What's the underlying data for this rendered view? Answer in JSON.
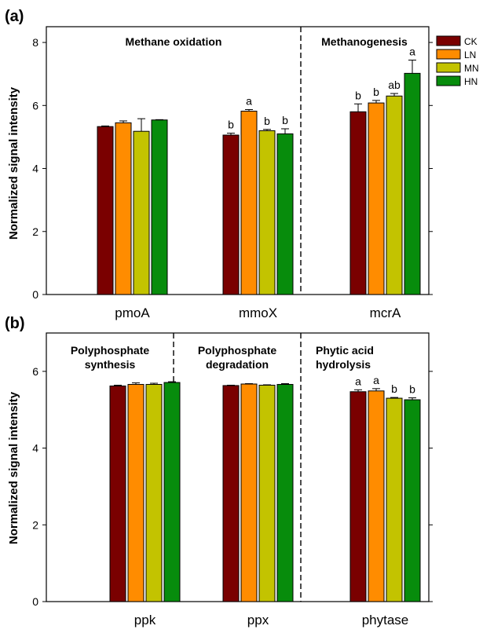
{
  "legend": [
    {
      "name": "CK",
      "color": "#7a0000"
    },
    {
      "name": "LN",
      "color": "#ff8c00"
    },
    {
      "name": "MN",
      "color": "#c3c300"
    },
    {
      "name": "HN",
      "color": "#078c0c"
    }
  ],
  "chart_data": [
    {
      "type": "bar",
      "panel_label": "(a)",
      "ylabel": "Normalized signal intensity",
      "ylim": [
        0,
        8.5
      ],
      "yticks": [
        0,
        2,
        4,
        6,
        8
      ],
      "categories": [
        "pmoA",
        "mmoX",
        "mcrA"
      ],
      "group_titles": [
        {
          "text": "Methane oxidation",
          "lines": [
            "Methane oxidation"
          ],
          "align": "center",
          "span": [
            0,
            1
          ]
        },
        {
          "text": "Methanogenesis",
          "lines": [
            "Methanogenesis"
          ],
          "align": "center",
          "span": [
            2,
            2
          ]
        }
      ],
      "dividers_after": [
        1
      ],
      "series": [
        {
          "name": "CK",
          "color": "#7a0000",
          "values": [
            5.33,
            5.06,
            5.8
          ],
          "errors": [
            0.02,
            0.06,
            0.25
          ],
          "labels": [
            "",
            "b",
            "b"
          ]
        },
        {
          "name": "LN",
          "color": "#ff8c00",
          "values": [
            5.45,
            5.82,
            6.08
          ],
          "errors": [
            0.06,
            0.05,
            0.08
          ],
          "labels": [
            "",
            "a",
            "b"
          ]
        },
        {
          "name": "MN",
          "color": "#c3c300",
          "values": [
            5.18,
            5.2,
            6.3
          ],
          "errors": [
            0.4,
            0.04,
            0.08
          ],
          "labels": [
            "",
            "b",
            "ab"
          ]
        },
        {
          "name": "HN",
          "color": "#078c0c",
          "values": [
            5.54,
            5.1,
            7.02
          ],
          "errors": [
            0.01,
            0.16,
            0.42
          ],
          "labels": [
            "",
            "b",
            "a"
          ]
        }
      ]
    },
    {
      "type": "bar",
      "panel_label": "(b)",
      "ylabel": "Normalized signal intensity",
      "ylim": [
        0,
        7
      ],
      "yticks": [
        0,
        2,
        4,
        6
      ],
      "categories": [
        "ppk",
        "ppx",
        "phytase"
      ],
      "group_titles": [
        {
          "text": "Polyphosphate synthesis",
          "lines": [
            "Polyphosphate",
            "synthesis"
          ],
          "align": "center",
          "span": [
            0,
            0
          ]
        },
        {
          "text": "Polyphosphate degradation",
          "lines": [
            "Polyphosphate",
            "degradation"
          ],
          "align": "center",
          "span": [
            1,
            1
          ]
        },
        {
          "text": "Phytic acid hydrolysis",
          "lines": [
            "Phytic acid",
            "hydrolysis"
          ],
          "align": "left",
          "span": [
            2,
            2
          ]
        }
      ],
      "dividers_after": [
        0,
        1
      ],
      "series": [
        {
          "name": "CK",
          "color": "#7a0000",
          "values": [
            5.62,
            5.63,
            5.47
          ],
          "errors": [
            0.02,
            0.01,
            0.05
          ],
          "labels": [
            "",
            "",
            "a"
          ]
        },
        {
          "name": "LN",
          "color": "#ff8c00",
          "values": [
            5.66,
            5.67,
            5.49
          ],
          "errors": [
            0.04,
            0.01,
            0.06
          ],
          "labels": [
            "",
            "",
            "a"
          ]
        },
        {
          "name": "MN",
          "color": "#c3c300",
          "values": [
            5.66,
            5.64,
            5.3
          ],
          "errors": [
            0.03,
            0.01,
            0.02
          ],
          "labels": [
            "",
            "",
            "b"
          ]
        },
        {
          "name": "HN",
          "color": "#078c0c",
          "values": [
            5.71,
            5.66,
            5.26
          ],
          "errors": [
            0.02,
            0.02,
            0.05
          ],
          "labels": [
            "",
            "",
            "b"
          ]
        }
      ]
    }
  ]
}
